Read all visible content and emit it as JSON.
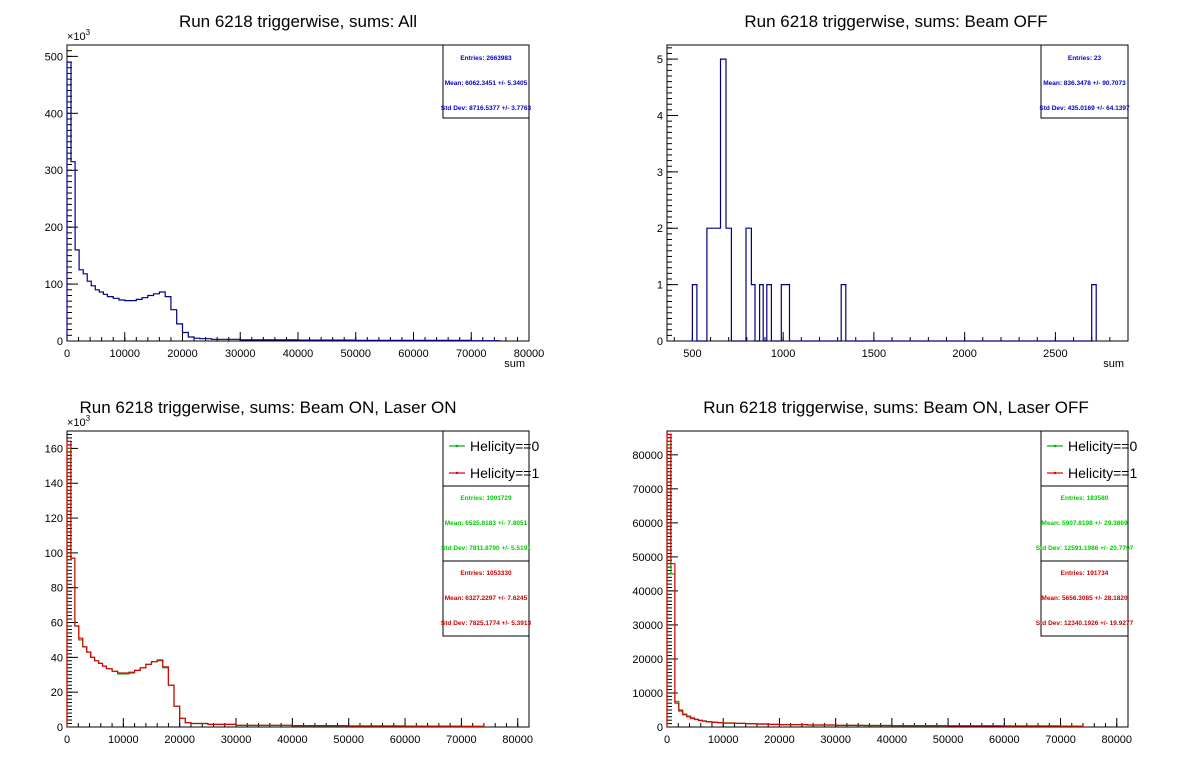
{
  "chart_data": [
    {
      "type": "histogram",
      "title": "Run 6218 triggerwise, sums: All",
      "xlabel": "sum",
      "xlim": [
        0,
        80000
      ],
      "ylim": [
        0,
        520
      ],
      "y_exponent": "×10³",
      "x_ticks": [
        "0",
        "10000",
        "20000",
        "30000",
        "40000",
        "50000",
        "60000",
        "70000",
        "80000"
      ],
      "y_ticks": [
        "0",
        "100",
        "200",
        "300",
        "400",
        "500"
      ],
      "stats": [
        "Entries: 2663983",
        "Mean: 6062.3451 +/- 5.3405",
        "Std Dev: 8716.5377 +/- 3.7763"
      ],
      "stats_color": "#0000cc",
      "series": [
        {
          "color": "#000080",
          "bins": [
            [
              0,
              490
            ],
            [
              700,
              315
            ],
            [
              1400,
              160
            ],
            [
              2100,
              125
            ],
            [
              2800,
              118
            ],
            [
              3500,
              105
            ],
            [
              4200,
              97
            ],
            [
              4900,
              90
            ],
            [
              5600,
              86
            ],
            [
              6300,
              82
            ],
            [
              7000,
              78
            ],
            [
              8000,
              75
            ],
            [
              9000,
              72
            ],
            [
              10000,
              71
            ],
            [
              11000,
              71
            ],
            [
              12000,
              73
            ],
            [
              13000,
              76
            ],
            [
              14000,
              80
            ],
            [
              15000,
              83
            ],
            [
              16000,
              86
            ],
            [
              17000,
              78
            ],
            [
              18000,
              55
            ],
            [
              19000,
              30
            ],
            [
              20000,
              15
            ],
            [
              21000,
              7
            ],
            [
              22000,
              5
            ],
            [
              23000,
              4
            ],
            [
              24000,
              4
            ],
            [
              25000,
              3
            ],
            [
              27000,
              3
            ],
            [
              30000,
              2
            ],
            [
              35000,
              2
            ],
            [
              40000,
              1.5
            ],
            [
              50000,
              1
            ],
            [
              60000,
              1
            ],
            [
              70000,
              0.5
            ],
            [
              75000,
              0
            ]
          ]
        }
      ]
    },
    {
      "type": "histogram",
      "title": "Run 6218 triggerwise, sums: Beam OFF",
      "xlabel": "sum",
      "xlim": [
        360,
        2900
      ],
      "ylim": [
        0,
        5.25
      ],
      "y_exponent": "",
      "x_ticks": [
        "500",
        "1000",
        "1500",
        "2000",
        "2500"
      ],
      "y_ticks": [
        "0",
        "1",
        "2",
        "3",
        "4",
        "5"
      ],
      "stats": [
        "Entries: 23",
        "Mean: 836.3478 +/- 90.7073",
        "Std Dev: 435.0169 +/- 64.1397"
      ],
      "stats_color": "#0000cc",
      "series": [
        {
          "color": "#000080",
          "bins": [
            [
              500,
              1
            ],
            [
              525,
              0
            ],
            [
              580,
              2
            ],
            [
              655,
              5
            ],
            [
              685,
              2
            ],
            [
              715,
              0
            ],
            [
              795,
              2
            ],
            [
              825,
              1
            ],
            [
              845,
              0
            ],
            [
              870,
              1
            ],
            [
              890,
              0
            ],
            [
              910,
              1
            ],
            [
              935,
              0
            ],
            [
              990,
              1
            ],
            [
              1035,
              0
            ],
            [
              1320,
              1
            ],
            [
              1345,
              0
            ],
            [
              2700,
              1
            ],
            [
              2725,
              0
            ]
          ]
        }
      ]
    },
    {
      "type": "histogram",
      "title": "Run 6218 triggerwise, sums: Beam ON, Laser ON",
      "xlabel": "",
      "xlim": [
        0,
        82000
      ],
      "ylim": [
        0,
        170
      ],
      "y_exponent": "×10³",
      "x_ticks": [
        "0",
        "10000",
        "20000",
        "30000",
        "40000",
        "50000",
        "60000",
        "70000",
        "80000"
      ],
      "y_ticks": [
        "0",
        "20",
        "40",
        "60",
        "80",
        "100",
        "120",
        "140",
        "160"
      ],
      "legend": [
        "Helicity==0",
        "Helicity==1"
      ],
      "stats_groups": [
        {
          "color": "#00cc00",
          "lines": [
            "Entries: 1001729",
            "Mean: 6525.8183 +/- 7.8051",
            "Std Dev: 7811.8790 +/- 5.5191"
          ]
        },
        {
          "color": "#cc0000",
          "lines": [
            "Entries: 1053330",
            "Mean: 6327.2297 +/- 7.6245",
            "Std Dev: 7825.1774 +/- 5.3913"
          ]
        }
      ],
      "series": [
        {
          "name": "Helicity==0",
          "color": "#00aa00",
          "bins": [
            [
              0,
              160
            ],
            [
              700,
              97
            ],
            [
              1400,
              58
            ],
            [
              2100,
              50
            ],
            [
              2800,
              46
            ],
            [
              3500,
              43
            ],
            [
              4200,
              40
            ],
            [
              4900,
              38
            ],
            [
              5600,
              36.5
            ],
            [
              6300,
              35
            ],
            [
              7000,
              33.5
            ],
            [
              8000,
              32
            ],
            [
              9000,
              30.5
            ],
            [
              10000,
              30.5
            ],
            [
              11000,
              31
            ],
            [
              12000,
              32.5
            ],
            [
              13000,
              34
            ],
            [
              14000,
              36
            ],
            [
              15000,
              37.5
            ],
            [
              16000,
              38
            ],
            [
              17000,
              34
            ],
            [
              18000,
              24
            ],
            [
              19000,
              12
            ],
            [
              20000,
              5
            ],
            [
              21000,
              2.5
            ],
            [
              22000,
              2
            ],
            [
              25000,
              1.5
            ],
            [
              30000,
              1
            ],
            [
              40000,
              0.8
            ],
            [
              50000,
              0.6
            ],
            [
              60000,
              0.5
            ],
            [
              70000,
              0.4
            ],
            [
              74000,
              0
            ]
          ]
        },
        {
          "name": "Helicity==1",
          "color": "#dd0000",
          "bins": [
            [
              0,
              164
            ],
            [
              700,
              97
            ],
            [
              1400,
              58
            ],
            [
              2100,
              51
            ],
            [
              2800,
              46
            ],
            [
              3500,
              43
            ],
            [
              4200,
              40
            ],
            [
              4900,
              38
            ],
            [
              5600,
              36.5
            ],
            [
              6300,
              35
            ],
            [
              7000,
              33.5
            ],
            [
              8000,
              32
            ],
            [
              9000,
              31
            ],
            [
              10000,
              31
            ],
            [
              11000,
              31.5
            ],
            [
              12000,
              32.5
            ],
            [
              13000,
              34
            ],
            [
              14000,
              36
            ],
            [
              15000,
              37.5
            ],
            [
              16000,
              38.5
            ],
            [
              17000,
              34.5
            ],
            [
              18000,
              24
            ],
            [
              19000,
              12
            ],
            [
              20000,
              5
            ],
            [
              21000,
              2.5
            ],
            [
              22000,
              2
            ],
            [
              25000,
              1.5
            ],
            [
              30000,
              1
            ],
            [
              40000,
              0.8
            ],
            [
              50000,
              0.6
            ],
            [
              60000,
              0.5
            ],
            [
              70000,
              0.4
            ],
            [
              74000,
              0
            ]
          ]
        }
      ]
    },
    {
      "type": "histogram",
      "title": "Run 6218 triggerwise, sums: Beam ON, Laser OFF",
      "xlabel": "",
      "xlim": [
        0,
        82000
      ],
      "ylim": [
        0,
        87000
      ],
      "y_exponent": "",
      "x_ticks": [
        "0",
        "10000",
        "20000",
        "30000",
        "40000",
        "50000",
        "60000",
        "70000",
        "80000"
      ],
      "y_ticks": [
        "0",
        "10000",
        "20000",
        "30000",
        "40000",
        "50000",
        "60000",
        "70000",
        "80000"
      ],
      "legend": [
        "Helicity==0",
        "Helicity==1"
      ],
      "stats_groups": [
        {
          "color": "#00cc00",
          "lines": [
            "Entries: 183580",
            "Mean: 5907.8198 +/- 29.3869",
            "Std Dev: 12591.1986 +/- 20.7797"
          ]
        },
        {
          "color": "#cc0000",
          "lines": [
            "Entries: 191734",
            "Mean: 5656.3085 +/- 28.1820",
            "Std Dev: 12340.1926 +/- 19.9277"
          ]
        }
      ],
      "series": [
        {
          "name": "Helicity==0",
          "color": "#00aa00",
          "bins": [
            [
              0,
              83000
            ],
            [
              700,
              45000
            ],
            [
              1400,
              7500
            ],
            [
              2100,
              5000
            ],
            [
              2800,
              3800
            ],
            [
              3500,
              3200
            ],
            [
              4200,
              2700
            ],
            [
              4900,
              2300
            ],
            [
              5600,
              2000
            ],
            [
              6300,
              1800
            ],
            [
              7000,
              1600
            ],
            [
              8000,
              1400
            ],
            [
              9000,
              1300
            ],
            [
              10000,
              1200
            ],
            [
              12000,
              1100
            ],
            [
              14000,
              1000
            ],
            [
              16000,
              900
            ],
            [
              18000,
              800
            ],
            [
              20000,
              700
            ],
            [
              25000,
              600
            ],
            [
              30000,
              500
            ],
            [
              35000,
              450
            ],
            [
              40000,
              400
            ],
            [
              50000,
              350
            ],
            [
              60000,
              300
            ],
            [
              70000,
              250
            ],
            [
              74000,
              0
            ]
          ]
        },
        {
          "name": "Helicity==1",
          "color": "#dd0000",
          "bins": [
            [
              0,
              86000
            ],
            [
              700,
              48000
            ],
            [
              1400,
              7000
            ],
            [
              2100,
              4700
            ],
            [
              2800,
              3600
            ],
            [
              3500,
              3000
            ],
            [
              4200,
              2500
            ],
            [
              4900,
              2200
            ],
            [
              5600,
              1900
            ],
            [
              6300,
              1700
            ],
            [
              7000,
              1500
            ],
            [
              8000,
              1350
            ],
            [
              9000,
              1250
            ],
            [
              10000,
              1150
            ],
            [
              12000,
              1050
            ],
            [
              14000,
              950
            ],
            [
              16000,
              850
            ],
            [
              18000,
              750
            ],
            [
              20000,
              680
            ],
            [
              25000,
              580
            ],
            [
              30000,
              480
            ],
            [
              35000,
              430
            ],
            [
              40000,
              380
            ],
            [
              50000,
              330
            ],
            [
              60000,
              280
            ],
            [
              70000,
              240
            ],
            [
              74000,
              0
            ]
          ]
        }
      ]
    }
  ]
}
